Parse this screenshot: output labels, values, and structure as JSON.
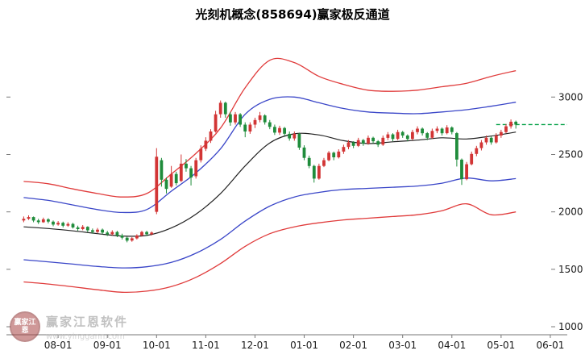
{
  "title": "光刻机概念(858694)赢家极反通道",
  "watermark": {
    "logo_text": "赢家江恩",
    "brand": "赢家江恩软件",
    "url": "www.yinggann.com"
  },
  "chart_data": {
    "type": "candlestick",
    "title": "光刻机概念(858694)赢家极反通道",
    "legend": "none",
    "grid": "ticks-only",
    "y_axis": {
      "min": 930,
      "max": 3550,
      "ticks": [
        1000,
        1500,
        2000,
        2500,
        3000
      ],
      "side": "right"
    },
    "x_axis": {
      "ticks": [
        {
          "i": 7,
          "label": "08-01"
        },
        {
          "i": 17,
          "label": "09-01"
        },
        {
          "i": 27,
          "label": "10-01"
        },
        {
          "i": 37,
          "label": "11-01"
        },
        {
          "i": 47,
          "label": "12-01"
        },
        {
          "i": 57,
          "label": "01-01"
        },
        {
          "i": 67,
          "label": "02-01"
        },
        {
          "i": 77,
          "label": "03-01"
        },
        {
          "i": 87,
          "label": "04-01"
        },
        {
          "i": 97,
          "label": "05-01"
        },
        {
          "i": 107,
          "label": "06-01"
        }
      ]
    },
    "index_range": [
      -3.5,
      107.5
    ],
    "style": {
      "up_color": "#d23535",
      "down_color": "#1f8c3b",
      "axis_color": "#777777",
      "label_color": "#1a1a1a",
      "last_price_color": "#00a045"
    },
    "candles": [
      [
        1925,
        1960,
        1910,
        1940
      ],
      [
        1940,
        1970,
        1930,
        1955
      ],
      [
        1955,
        1960,
        1910,
        1925
      ],
      [
        1925,
        1940,
        1895,
        1910
      ],
      [
        1910,
        1950,
        1905,
        1935
      ],
      [
        1935,
        1945,
        1900,
        1915
      ],
      [
        1915,
        1925,
        1875,
        1890
      ],
      [
        1890,
        1920,
        1880,
        1905
      ],
      [
        1905,
        1915,
        1865,
        1880
      ],
      [
        1880,
        1910,
        1870,
        1895
      ],
      [
        1895,
        1905,
        1855,
        1865
      ],
      [
        1865,
        1880,
        1835,
        1850
      ],
      [
        1850,
        1885,
        1840,
        1870
      ],
      [
        1870,
        1875,
        1825,
        1840
      ],
      [
        1840,
        1855,
        1810,
        1825
      ],
      [
        1825,
        1860,
        1815,
        1845
      ],
      [
        1845,
        1855,
        1805,
        1820
      ],
      [
        1820,
        1835,
        1790,
        1805
      ],
      [
        1805,
        1840,
        1795,
        1825
      ],
      [
        1825,
        1835,
        1780,
        1795
      ],
      [
        1795,
        1810,
        1760,
        1775
      ],
      [
        1775,
        1785,
        1735,
        1750
      ],
      [
        1750,
        1780,
        1740,
        1770
      ],
      [
        1770,
        1805,
        1760,
        1795
      ],
      [
        1795,
        1835,
        1785,
        1825
      ],
      [
        1825,
        1835,
        1790,
        1805
      ],
      [
        1805,
        1830,
        1795,
        1820
      ],
      [
        2000,
        2555,
        1980,
        2480
      ],
      [
        2450,
        2470,
        2220,
        2280
      ],
      [
        2280,
        2300,
        2160,
        2200
      ],
      [
        2220,
        2400,
        2210,
        2330
      ],
      [
        2330,
        2350,
        2230,
        2250
      ],
      [
        2270,
        2500,
        2260,
        2420
      ],
      [
        2420,
        2460,
        2350,
        2380
      ],
      [
        2380,
        2400,
        2230,
        2300
      ],
      [
        2310,
        2470,
        2290,
        2450
      ],
      [
        2450,
        2580,
        2430,
        2550
      ],
      [
        2550,
        2650,
        2530,
        2620
      ],
      [
        2620,
        2720,
        2600,
        2700
      ],
      [
        2700,
        2880,
        2690,
        2850
      ],
      [
        2850,
        2970,
        2820,
        2950
      ],
      [
        2950,
        2960,
        2820,
        2850
      ],
      [
        2850,
        2870,
        2750,
        2780
      ],
      [
        2780,
        2870,
        2760,
        2850
      ],
      [
        2850,
        2860,
        2740,
        2760
      ],
      [
        2760,
        2780,
        2650,
        2700
      ],
      [
        2700,
        2780,
        2680,
        2760
      ],
      [
        2760,
        2820,
        2730,
        2800
      ],
      [
        2800,
        2870,
        2780,
        2840
      ],
      [
        2840,
        2850,
        2760,
        2780
      ],
      [
        2780,
        2800,
        2720,
        2740
      ],
      [
        2740,
        2760,
        2670,
        2690
      ],
      [
        2690,
        2750,
        2670,
        2730
      ],
      [
        2730,
        2740,
        2660,
        2680
      ],
      [
        2680,
        2700,
        2620,
        2640
      ],
      [
        2640,
        2700,
        2620,
        2680
      ],
      [
        2680,
        2690,
        2540,
        2560
      ],
      [
        2560,
        2580,
        2450,
        2470
      ],
      [
        2470,
        2490,
        2380,
        2400
      ],
      [
        2400,
        2410,
        2255,
        2290
      ],
      [
        2290,
        2420,
        2280,
        2400
      ],
      [
        2400,
        2470,
        2390,
        2450
      ],
      [
        2450,
        2530,
        2440,
        2515
      ],
      [
        2515,
        2525,
        2450,
        2475
      ],
      [
        2475,
        2545,
        2465,
        2525
      ],
      [
        2525,
        2585,
        2505,
        2565
      ],
      [
        2565,
        2625,
        2545,
        2605
      ],
      [
        2605,
        2615,
        2555,
        2575
      ],
      [
        2575,
        2645,
        2565,
        2625
      ],
      [
        2625,
        2635,
        2575,
        2595
      ],
      [
        2595,
        2665,
        2585,
        2645
      ],
      [
        2645,
        2655,
        2595,
        2615
      ],
      [
        2615,
        2625,
        2565,
        2585
      ],
      [
        2585,
        2665,
        2575,
        2645
      ],
      [
        2645,
        2695,
        2625,
        2675
      ],
      [
        2675,
        2685,
        2615,
        2635
      ],
      [
        2635,
        2715,
        2625,
        2695
      ],
      [
        2695,
        2705,
        2645,
        2665
      ],
      [
        2665,
        2675,
        2615,
        2635
      ],
      [
        2635,
        2715,
        2625,
        2695
      ],
      [
        2695,
        2745,
        2675,
        2725
      ],
      [
        2725,
        2735,
        2665,
        2685
      ],
      [
        2685,
        2695,
        2625,
        2645
      ],
      [
        2645,
        2725,
        2635,
        2705
      ],
      [
        2705,
        2745,
        2685,
        2725
      ],
      [
        2725,
        2735,
        2665,
        2685
      ],
      [
        2685,
        2755,
        2675,
        2735
      ],
      [
        2735,
        2745,
        2675,
        2695
      ],
      [
        2685,
        2695,
        2395,
        2455
      ],
      [
        2455,
        2465,
        2235,
        2285
      ],
      [
        2285,
        2435,
        2275,
        2415
      ],
      [
        2415,
        2525,
        2405,
        2505
      ],
      [
        2505,
        2575,
        2485,
        2555
      ],
      [
        2555,
        2625,
        2535,
        2605
      ],
      [
        2605,
        2665,
        2585,
        2645
      ],
      [
        2645,
        2655,
        2585,
        2605
      ],
      [
        2605,
        2685,
        2595,
        2665
      ],
      [
        2665,
        2715,
        2645,
        2695
      ],
      [
        2695,
        2765,
        2685,
        2745
      ],
      [
        2745,
        2805,
        2725,
        2785
      ],
      [
        2785,
        2795,
        2725,
        2760
      ]
    ],
    "channel_sample_step": 5,
    "channels": [
      {
        "name": "upper-outer-rail",
        "color": "#e03b3b",
        "width": 1.3,
        "values": [
          2265,
          2245,
          2200,
          2160,
          2130,
          2160,
          2330,
          2510,
          2730,
          3080,
          3320,
          3300,
          3180,
          3110,
          3060,
          3050,
          3060,
          3090,
          3120,
          3180,
          3230
        ]
      },
      {
        "name": "upper-inner-rail",
        "color": "#3a46c8",
        "width": 1.3,
        "values": [
          2125,
          2100,
          2060,
          2020,
          1995,
          2020,
          2180,
          2340,
          2550,
          2850,
          2980,
          3000,
          2950,
          2900,
          2870,
          2860,
          2855,
          2870,
          2890,
          2920,
          2955
        ]
      },
      {
        "name": "mid-trend-line",
        "color": "#222222",
        "width": 1.2,
        "values": [
          1870,
          1855,
          1835,
          1810,
          1790,
          1795,
          1860,
          1980,
          2160,
          2400,
          2600,
          2680,
          2670,
          2620,
          2595,
          2610,
          2625,
          2645,
          2635,
          2660,
          2695
        ]
      },
      {
        "name": "lower-inner-rail",
        "color": "#3a46c8",
        "width": 1.3,
        "values": [
          1583,
          1565,
          1545,
          1525,
          1512,
          1522,
          1560,
          1640,
          1760,
          1920,
          2050,
          2130,
          2170,
          2195,
          2205,
          2215,
          2225,
          2250,
          2295,
          2270,
          2290
        ]
      },
      {
        "name": "lower-outer-rail",
        "color": "#e03b3b",
        "width": 1.3,
        "values": [
          1390,
          1372,
          1348,
          1322,
          1300,
          1310,
          1350,
          1430,
          1550,
          1700,
          1810,
          1870,
          1905,
          1930,
          1945,
          1960,
          1975,
          2010,
          2070,
          1975,
          2000
        ]
      }
    ],
    "last_price_line": {
      "value": 2760,
      "style": "dashed"
    }
  }
}
